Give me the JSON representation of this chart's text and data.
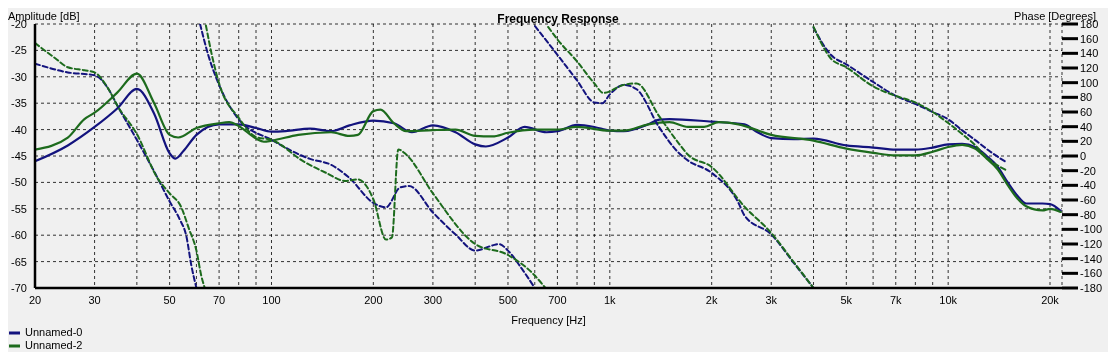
{
  "chart_data": {
    "type": "line",
    "title": "Frequency Response",
    "xlabel": "Frequency [Hz]",
    "ylabel": "Amplitude [dB]",
    "y2label": "Phase [Degrees]",
    "log": "x",
    "grid": true,
    "legend": "bottom left",
    "marker": "none",
    "xlim": [
      20,
      21700
    ],
    "xticks": [
      20,
      30,
      {
        "value": 40,
        "label": null
      },
      50,
      {
        "value": 60,
        "label": null
      },
      70,
      {
        "value": 80,
        "label": null
      },
      {
        "value": 90,
        "label": null
      },
      100,
      200,
      300,
      {
        "value": 400,
        "label": null
      },
      500,
      {
        "value": 600,
        "label": null
      },
      700,
      {
        "value": 800,
        "label": null
      },
      {
        "value": 900,
        "label": null
      },
      {
        "value": 1000,
        "label": "1k"
      },
      {
        "value": 2000,
        "label": "2k"
      },
      {
        "value": 3000,
        "label": "3k"
      },
      {
        "value": 4000,
        "label": null
      },
      {
        "value": 5000,
        "label": "5k"
      },
      {
        "value": 6000,
        "label": null
      },
      {
        "value": 7000,
        "label": "7k"
      },
      {
        "value": 8000,
        "label": null
      },
      {
        "value": 9000,
        "label": null
      },
      {
        "value": 10000,
        "label": "10k"
      },
      {
        "value": 20000,
        "label": "20k"
      }
    ],
    "ylim": [
      -70,
      -20
    ],
    "yticks": [
      -70,
      -65,
      -60,
      -55,
      -50,
      -45,
      -40,
      -35,
      -30,
      -25,
      -20
    ],
    "y2lim": [
      -180,
      180
    ],
    "y2ticks": [
      -180,
      -160,
      -140,
      -120,
      -100,
      -80,
      -60,
      -40,
      -20,
      0,
      20,
      40,
      60,
      80,
      100,
      120,
      140,
      160,
      180
    ],
    "series": [
      {
        "name": "Unnamed-0",
        "type": "line",
        "color": "#13137e",
        "line_style": "solid",
        "x": [
          20,
          25,
          30,
          35,
          40,
          45,
          50,
          52,
          55,
          60,
          70,
          80,
          90,
          100,
          110,
          130,
          150,
          170,
          200,
          230,
          260,
          300,
          350,
          400,
          430,
          500,
          560,
          650,
          700,
          800,
          900,
          1000,
          1100,
          1300,
          1400,
          1500,
          2000,
          2500,
          2700,
          3000,
          3500,
          4000,
          5000,
          6000,
          7000,
          8000,
          9000,
          10000,
          11000,
          12000,
          13000,
          14000,
          15000,
          16000,
          17000,
          19000,
          20000,
          21500
        ],
        "values": [
          -46,
          -43,
          -39.5,
          -36,
          -32.3,
          -37,
          -44.5,
          -45.5,
          -44,
          -41,
          -39,
          -39,
          -39.7,
          -40.4,
          -40.3,
          -39.8,
          -40.3,
          -39.2,
          -38.3,
          -38.8,
          -40.5,
          -39.2,
          -40.5,
          -42.8,
          -43.2,
          -41.5,
          -39.5,
          -40.5,
          -40.3,
          -39.1,
          -39.5,
          -40.2,
          -40.3,
          -39,
          -38.1,
          -38,
          -38.5,
          -39,
          -40.3,
          -41.6,
          -41.8,
          -41.7,
          -43,
          -43.4,
          -43.8,
          -43.8,
          -43.4,
          -42.8,
          -42.7,
          -43.3,
          -45,
          -47,
          -50,
          -52.5,
          -54,
          -54,
          -54.1,
          -55.4
        ]
      },
      {
        "name": "Unnamed-2",
        "type": "line",
        "color": "#1d6b1d",
        "line_style": "solid",
        "x": [
          20,
          25,
          28,
          30,
          35,
          40,
          45,
          50,
          53,
          60,
          70,
          75,
          80,
          90,
          95,
          100,
          120,
          150,
          170,
          180,
          200,
          210,
          230,
          250,
          300,
          350,
          400,
          450,
          500,
          600,
          700,
          800,
          1000,
          1100,
          1300,
          1500,
          1700,
          1900,
          2100,
          2400,
          3000,
          4000,
          5000,
          6000,
          7000,
          8000,
          9000,
          10000,
          11000,
          12000,
          13000,
          14000,
          15000,
          16000,
          17000,
          19000,
          20000,
          21500
        ],
        "values": [
          -43.8,
          -41.5,
          -38,
          -36.8,
          -33,
          -29.4,
          -35,
          -41,
          -41.5,
          -39.7,
          -38.8,
          -38.6,
          -39.3,
          -41.7,
          -42.3,
          -42.1,
          -41,
          -40.5,
          -41.2,
          -41,
          -36.5,
          -36.2,
          -38.8,
          -40.3,
          -40.1,
          -40,
          -41.2,
          -41.3,
          -40.6,
          -40,
          -40,
          -39.5,
          -40.2,
          -40.2,
          -39,
          -38.6,
          -39.5,
          -39.5,
          -38.6,
          -39,
          -41,
          -42.1,
          -43.6,
          -44.4,
          -44.9,
          -44.9,
          -44.2,
          -43.3,
          -42.9,
          -43.6,
          -45.5,
          -47.5,
          -50.5,
          -53,
          -54.5,
          -55.3,
          -55,
          -55.6
        ]
      },
      {
        "type": "line",
        "axis": "y2",
        "color": "#13137e",
        "line_style": "dashed",
        "x": [
          20,
          25,
          30,
          33,
          35,
          40,
          45,
          50,
          53.5,
          56,
          58,
          60,
          60.7,
          61.5,
          65,
          70,
          80,
          100,
          130,
          150,
          170,
          200,
          218,
          240,
          255,
          300,
          350,
          400,
          450,
          470,
          500,
          550,
          600,
          600.5,
          601,
          700,
          800,
          900,
          950,
          1000,
          1100,
          1200,
          1400,
          1600,
          1700,
          2000,
          2400,
          2500,
          3000,
          3500,
          4000,
          4000.5,
          4001,
          4500,
          5000,
          6000,
          7000,
          8000,
          9000,
          10000,
          11000,
          12000,
          13500,
          14800
        ],
        "values": [
          126,
          114,
          110,
          91,
          69,
          22,
          -21,
          -62,
          -86,
          -109,
          -150,
          -180,
          null,
          180,
          138,
          97,
          50,
          22,
          -4,
          -12,
          -30,
          -64,
          -70,
          -43,
          -41,
          -77,
          -107,
          -129,
          -122,
          -120,
          -129,
          -154,
          -180,
          null,
          177,
          138,
          103,
          73,
          72,
          84,
          97,
          91,
          39,
          4,
          -6,
          -23,
          -64,
          -81,
          -107,
          -146,
          -180,
          null,
          175,
          138,
          125,
          101,
          82,
          71,
          60,
          50,
          35,
          22,
          4,
          -8
        ]
      },
      {
        "type": "line",
        "axis": "y2",
        "color": "#1d6b1d",
        "line_style": "dashed",
        "x": [
          20,
          23,
          25,
          28,
          30,
          33,
          35,
          40,
          46,
          50,
          54,
          57,
          60,
          62,
          63.5,
          63.8,
          64,
          67,
          70,
          80,
          90,
          100,
          125,
          145,
          165,
          180,
          200,
          218,
          227,
          237,
          250,
          300,
          400,
          500,
          600,
          645,
          650,
          657,
          700,
          800,
          900,
          957,
          1100,
          1200,
          1400,
          1600,
          1700,
          2000,
          2500,
          3000,
          3500,
          4000,
          4000.5,
          4001,
          4500,
          5000,
          6000,
          7000,
          8000,
          9000,
          10000,
          11000,
          12000,
          13000,
          14800
        ],
        "values": [
          154,
          133,
          121,
          117,
          114,
          91,
          69,
          30,
          -30,
          -51,
          -69,
          -99,
          -129,
          -163,
          -180,
          null,
          178,
          133,
          99,
          52,
          26,
          22,
          -8,
          -23,
          -34,
          -32,
          -59,
          -114,
          -111,
          9,
          2,
          -51,
          -120,
          -135,
          -163,
          -180,
          null,
          176,
          159,
          129,
          99,
          86,
          97,
          99,
          54,
          17,
          2,
          -15,
          -69,
          -105,
          -145,
          -180,
          null,
          176,
          133,
          121,
          95,
          82,
          73,
          60,
          45,
          30,
          15,
          -2,
          -19
        ]
      }
    ]
  }
}
